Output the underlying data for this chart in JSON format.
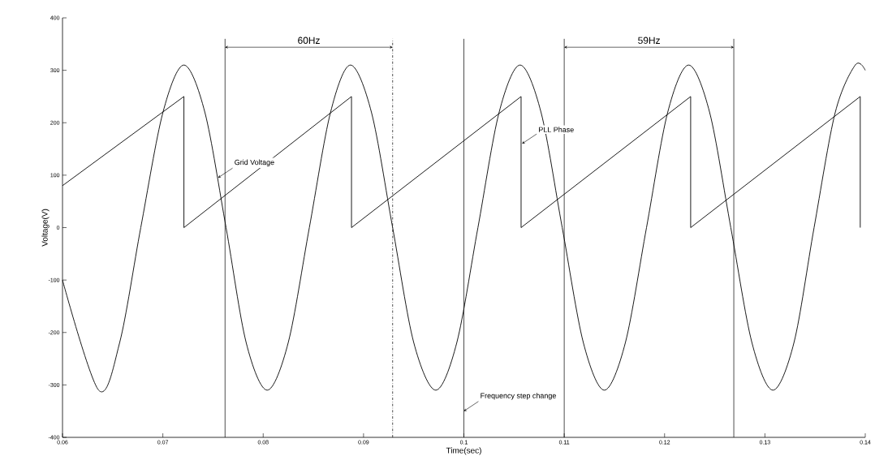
{
  "chart_data": {
    "type": "line",
    "xlabel": "Time(sec)",
    "ylabel": "Voltage(V)",
    "xlim": [
      0.06,
      0.14
    ],
    "ylim": [
      -400,
      400
    ],
    "xticks": [
      0.06,
      0.07,
      0.08,
      0.09,
      0.1,
      0.11,
      0.12,
      0.13,
      0.14
    ],
    "yticks": [
      -400,
      -300,
      -200,
      -100,
      0,
      100,
      200,
      300,
      400
    ],
    "grid": false,
    "marker": "none",
    "line_style": "solid",
    "series": [
      {
        "color": "#000000",
        "x": [
          0.06,
          0.0636,
          0.0657,
          0.0678,
          0.07,
          0.0721,
          0.0742,
          0.0763,
          0.0783,
          0.0804,
          0.0825,
          0.0846,
          0.0867,
          0.0887,
          0.0908,
          0.0929,
          0.095,
          0.0972,
          0.0993,
          0.1014,
          0.1035,
          0.1056,
          0.1077,
          0.1098,
          0.1119,
          0.114,
          0.1161,
          0.1182,
          0.1203,
          0.1224,
          0.1245,
          0.1266,
          0.1287,
          0.1308,
          0.1329,
          0.1349,
          0.137,
          0.139,
          0.14
        ],
        "values": [
          -100,
          -310,
          -219,
          0,
          219,
          310,
          219,
          0,
          -219,
          -310,
          -219,
          0,
          219,
          310,
          219,
          0,
          -219,
          -310,
          -219,
          0,
          219,
          310,
          219,
          0,
          -219,
          -310,
          -219,
          0,
          219,
          310,
          219,
          0,
          -219,
          -310,
          -219,
          0,
          219,
          310,
          300
        ]
      },
      {
        "color": "#000000",
        "x": [
          0.06,
          0.0721,
          0.0721,
          0.0888,
          0.0888,
          0.1057,
          0.1057,
          0.1226,
          0.1226,
          0.1395,
          0.1395
        ],
        "values": [
          80,
          250,
          0,
          250,
          0,
          250,
          0,
          250,
          0,
          250,
          0
        ]
      }
    ],
    "ref_lines": [
      {
        "axis": "x",
        "value": 0.0762
      },
      {
        "axis": "x",
        "value": 0.0929,
        "line_style": "dashed"
      },
      {
        "axis": "x",
        "value": 0.11
      },
      {
        "axis": "x",
        "value": 0.1269
      },
      {
        "axis": "x",
        "value": 0.1
      }
    ],
    "annotations": [
      "60Hz",
      "59Hz",
      {
        "text": "Grid Voltage",
        "x": 0.0755,
        "y": 95
      },
      {
        "text": "PLL Phase",
        "x": 0.1058,
        "y": 160
      },
      {
        "text": "Frequency step change",
        "x": 0.1,
        "y": -350
      }
    ]
  }
}
